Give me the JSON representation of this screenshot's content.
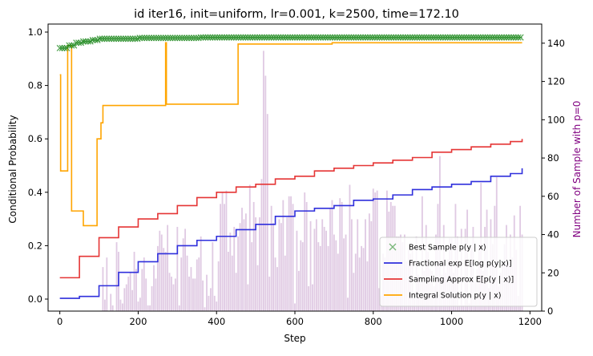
{
  "chart_data": {
    "type": "line",
    "title": "id iter16, init=uniform, lr=0.001, k=2500, time=172.10",
    "xlabel": "Step",
    "ylabel": "Conditional Probability",
    "y2label": "Number of Sample with p=0",
    "xlim": [
      -30,
      1230
    ],
    "ylim": [
      -0.045,
      1.03
    ],
    "y2lim": [
      0,
      150
    ],
    "xticks": [
      0,
      200,
      400,
      600,
      800,
      1000,
      1200
    ],
    "yticks": [
      0.0,
      0.2,
      0.4,
      0.6,
      0.8,
      1.0
    ],
    "y2ticks": [
      0,
      20,
      40,
      60,
      80,
      100,
      120,
      140
    ],
    "legend_position": "lower-right",
    "colors": {
      "best": "#228b22",
      "fractional": "#2f2fdc",
      "sampling": "#e53535",
      "integral": "#ffa500",
      "bars": "#a05aa8",
      "y2label": "#800080"
    },
    "legend": [
      {
        "key": "best",
        "label": "Best Sample p(y | x)"
      },
      {
        "key": "fractional",
        "label": "Fractional exp E[log p(y|x)]"
      },
      {
        "key": "sampling",
        "label": "Sampling Approx E[p(y | x)]"
      },
      {
        "key": "integral",
        "label": "Integral Solution p(y | x)"
      }
    ],
    "series": [
      {
        "key": "fractional",
        "x": [
          0,
          50,
          100,
          150,
          200,
          250,
          300,
          350,
          400,
          450,
          500,
          550,
          600,
          650,
          700,
          750,
          800,
          850,
          900,
          950,
          1000,
          1050,
          1100,
          1150,
          1180
        ],
        "y": [
          0.003,
          0.01,
          0.05,
          0.1,
          0.14,
          0.17,
          0.2,
          0.22,
          0.235,
          0.26,
          0.28,
          0.31,
          0.33,
          0.34,
          0.35,
          0.37,
          0.375,
          0.39,
          0.41,
          0.42,
          0.43,
          0.44,
          0.46,
          0.47,
          0.49
        ]
      },
      {
        "key": "sampling",
        "x": [
          0,
          50,
          100,
          150,
          200,
          250,
          300,
          350,
          400,
          450,
          500,
          550,
          600,
          650,
          700,
          750,
          800,
          850,
          900,
          950,
          1000,
          1050,
          1100,
          1150,
          1180
        ],
        "y": [
          0.08,
          0.16,
          0.23,
          0.27,
          0.3,
          0.32,
          0.35,
          0.38,
          0.4,
          0.42,
          0.43,
          0.45,
          0.46,
          0.48,
          0.49,
          0.5,
          0.51,
          0.52,
          0.53,
          0.55,
          0.56,
          0.57,
          0.58,
          0.59,
          0.6
        ]
      },
      {
        "key": "integral",
        "x": [
          0,
          2,
          20,
          30,
          60,
          95,
          105,
          110,
          270,
          272,
          280,
          450,
          455,
          690,
          695,
          1180
        ],
        "y": [
          0.84,
          0.48,
          0.95,
          0.33,
          0.275,
          0.6,
          0.66,
          0.725,
          0.96,
          0.73,
          0.73,
          0.73,
          0.955,
          0.955,
          0.96,
          0.96
        ]
      },
      {
        "key": "best",
        "x": [
          0,
          20,
          40,
          60,
          80,
          100,
          120,
          140,
          160,
          180,
          200,
          220,
          240,
          260,
          280,
          320,
          360,
          400,
          450,
          500,
          600,
          700,
          800,
          900,
          1000,
          1100,
          1180
        ],
        "y": [
          0.94,
          0.95,
          0.96,
          0.965,
          0.97,
          0.975,
          0.975,
          0.975,
          0.975,
          0.975,
          0.978,
          0.978,
          0.978,
          0.978,
          0.978,
          0.978,
          0.98,
          0.98,
          0.98,
          0.98,
          0.98,
          0.98,
          0.98,
          0.98,
          0.98,
          0.98,
          0.98
        ]
      }
    ],
    "bars": {
      "step_start": 110,
      "step_end": 1185,
      "step_interval": 5,
      "values": [
        23,
        6,
        28,
        0,
        9,
        3,
        0,
        36,
        31,
        6,
        4,
        12,
        14,
        18,
        20,
        11,
        31,
        22,
        5,
        7,
        22,
        28,
        17,
        3,
        3,
        13,
        24,
        17,
        34,
        42,
        40,
        33,
        31,
        45,
        20,
        18,
        14,
        17,
        44,
        3,
        28,
        38,
        43,
        29,
        18,
        23,
        17,
        17,
        27,
        28,
        39,
        16,
        2,
        19,
        8,
        12,
        36,
        8,
        5,
        26,
        56,
        62,
        56,
        63,
        31,
        41,
        29,
        44,
        20,
        39,
        46,
        54,
        48,
        51,
        14,
        66,
        36,
        57,
        49,
        24,
        49,
        69,
        136,
        123,
        103,
        18,
        55,
        46,
        28,
        23,
        48,
        46,
        58,
        29,
        49,
        60,
        60,
        56,
        4,
        42,
        21,
        37,
        36,
        62,
        57,
        13,
        47,
        14,
        43,
        48,
        36,
        34,
        48,
        44,
        42,
        34,
        54,
        58,
        40,
        37,
        30,
        59,
        57,
        38,
        40,
        7,
        66,
        48,
        20,
        30,
        48,
        28,
        34,
        33,
        48,
        26,
        51,
        47,
        64,
        62,
        63,
        12,
        8,
        30,
        28,
        63,
        52,
        57,
        55,
        55,
        39,
        39,
        40,
        36,
        40,
        26,
        35,
        30,
        32,
        10,
        39,
        19,
        18,
        60,
        21,
        45,
        31,
        22,
        21,
        13,
        40,
        56,
        81,
        19,
        45,
        20,
        27,
        38,
        38,
        20,
        56,
        39,
        3,
        43,
        3,
        43,
        53,
        4,
        33,
        44,
        15,
        22,
        35,
        67,
        21,
        44,
        53,
        12,
        48,
        35,
        55,
        70,
        13,
        20,
        25,
        35,
        45,
        25,
        40,
        28,
        50,
        32,
        8,
        55,
        40
      ]
    }
  }
}
